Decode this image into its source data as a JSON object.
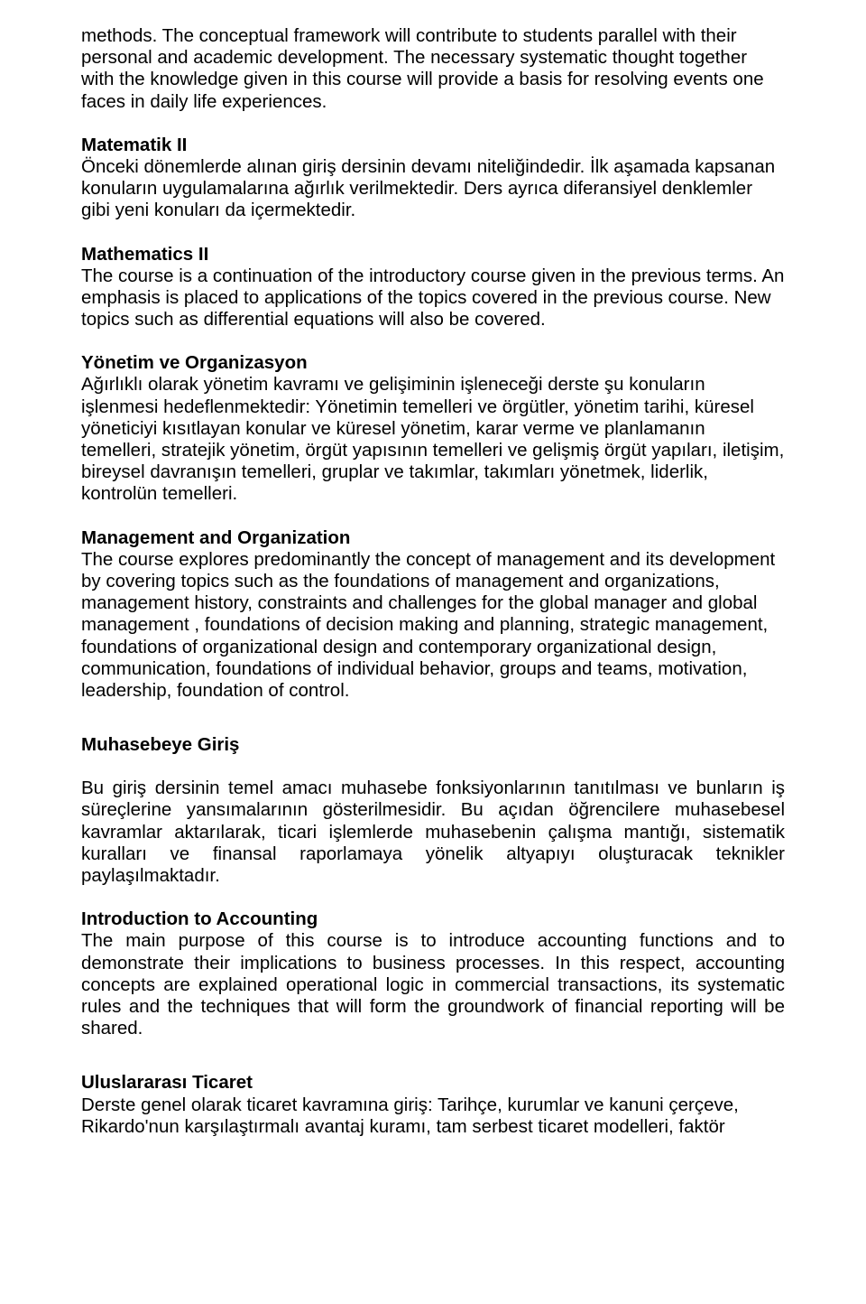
{
  "p1": "methods. The conceptual framework will contribute to students parallel with their personal and academic development. The necessary systematic thought together with the knowledge given in this course will provide a basis for resolving events one faces in daily life experiences.",
  "s2": {
    "h": "Matematik II",
    "t": "Önceki dönemlerde alınan giriş dersinin devamı niteliğindedir. İlk aşamada kapsanan konuların uygulamalarına ağırlık verilmektedir. Ders ayrıca diferansiyel denklemler gibi yeni konuları da içermektedir."
  },
  "s3": {
    "h": "Mathematics II",
    "t": "The course is a continuation of the introductory course given in the previous terms. An emphasis is placed to applications of the topics covered in the previous course. New topics such as differential equations will also be covered."
  },
  "s4": {
    "h": "Yönetim ve Organizasyon",
    "t": "Ağırlıklı olarak yönetim kavramı ve gelişiminin işleneceği derste şu konuların işlenmesi hedeflenmektedir: Yönetimin temelleri ve örgütler, yönetim tarihi, küresel yöneticiyi kısıtlayan konular ve küresel yönetim, karar verme ve planlamanın temelleri, stratejik yönetim, örgüt yapısının temelleri ve gelişmiş örgüt yapıları, iletişim, bireysel davranışın temelleri, gruplar ve takımlar, takımları yönetmek, liderlik, kontrolün temelleri."
  },
  "s5": {
    "h": "Management and Organization",
    "t": "The course explores predominantly the concept of management and its development by covering topics such as the foundations of management and organizations, management history, constraints and challenges for the global manager and global management , foundations of decision making and planning, strategic management, foundations of organizational design and contemporary organizational design, communication, foundations of individual behavior, groups and teams, motivation, leadership, foundation of control."
  },
  "s6": {
    "h": "Muhasebeye Giriş",
    "t": "Bu giriş dersinin temel amacı muhasebe fonksiyonlarının tanıtılması ve bunların iş süreçlerine yansımalarının gösterilmesidir. Bu açıdan öğrencilere muhasebesel kavramlar aktarılarak, ticari işlemlerde muhasebenin çalışma mantığı, sistematik kuralları ve finansal raporlamaya yönelik altyapıyı oluşturacak teknikler paylaşılmaktadır."
  },
  "s7": {
    "h": "Introduction to Accounting",
    "t": "The main purpose of this course is to introduce accounting functions and to demonstrate their implications to business processes. In this respect, accounting concepts are explained operational logic in commercial transactions, its systematic rules and the techniques that will form the groundwork of financial reporting will be shared."
  },
  "s8": {
    "h": "Uluslararası Ticaret",
    "t": "Derste genel olarak ticaret kavramına giriş: Tarihçe, kurumlar ve kanuni çerçeve, Rikardo'nun karşılaştırmalı avantaj kuramı, tam serbest ticaret modelleri, faktör"
  }
}
